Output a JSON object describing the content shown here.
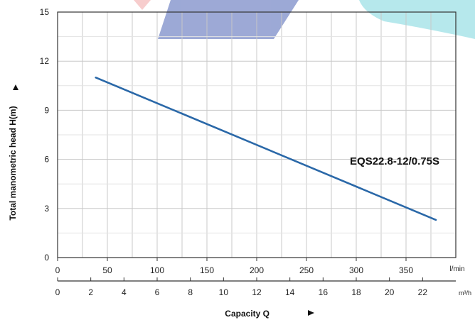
{
  "chart_data": {
    "type": "line",
    "title": "",
    "ylabel": "Total manometric head H(m)",
    "xlabel": "Capacity Q",
    "ylim": [
      0,
      15
    ],
    "yticks": [
      0,
      3,
      6,
      9,
      12,
      15
    ],
    "x_primary": {
      "unit": "l/min",
      "ticks": [
        0,
        50,
        100,
        150,
        200,
        250,
        300,
        350
      ],
      "range": [
        0,
        400
      ]
    },
    "x_secondary": {
      "unit": "m³/h",
      "ticks": [
        0,
        2,
        4,
        6,
        8,
        10,
        12,
        14,
        16,
        18,
        20,
        22
      ],
      "range": [
        0,
        24
      ]
    },
    "grid": true,
    "series": [
      {
        "name": "EQS22.8-12/0.75S",
        "x_unit": "m³/h",
        "x": [
          2.3,
          22.8
        ],
        "y": [
          11.0,
          2.3
        ],
        "color": "#2a68a8"
      }
    ]
  },
  "colors": {
    "grid_major": "#c8c8c8",
    "grid_minor": "#e3e3e3",
    "axis": "#333333",
    "watermark_blue": "#4c63b5",
    "watermark_cyan": "#7ad6dd",
    "watermark_red": "#f2a5a5"
  }
}
